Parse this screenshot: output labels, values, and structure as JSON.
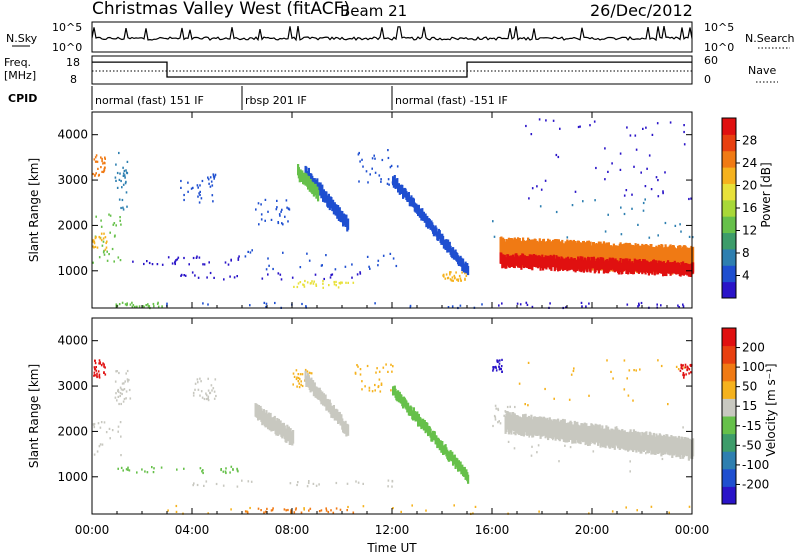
{
  "header": {
    "station": "Christmas Valley West (fitACF)",
    "beam": "Beam 21",
    "date": "26/Dec/2012"
  },
  "noise_panel": {
    "left_label": "N.Sky",
    "right_label": "N.Search",
    "left_ticks": [
      "10^5",
      "10^0"
    ],
    "right_ticks": [
      "10^5",
      "10^0"
    ]
  },
  "freq_panel": {
    "left_label_1": "Freq.",
    "left_label_2": "[MHz]",
    "right_label": "Nave",
    "left_ticks": [
      "18",
      "8"
    ],
    "right_ticks": [
      "60",
      "0"
    ],
    "freq_steps": [
      {
        "start_hr": 0,
        "end_hr": 3.0,
        "level": 0.78
      },
      {
        "start_hr": 3.0,
        "end_hr": 15.0,
        "level": 0.25
      },
      {
        "start_hr": 15.0,
        "end_hr": 24.0,
        "level": 0.78
      }
    ]
  },
  "cpid": {
    "label": "CPID",
    "segments": [
      {
        "start_hr": 0,
        "end_hr": 6.0,
        "text": "normal (fast) 151 IF"
      },
      {
        "start_hr": 6.0,
        "end_hr": 12.0,
        "text": "rbsp 201 IF"
      },
      {
        "start_hr": 12.0,
        "end_hr": 24.0,
        "text": "normal (fast) -151 IF"
      }
    ]
  },
  "chart_data": [
    {
      "type": "heatmap",
      "name": "power",
      "ylabel": "Slant Range [km]",
      "x_range_hours": [
        0,
        24
      ],
      "ylim": [
        180,
        4500
      ],
      "y_ticks": [
        1000,
        2000,
        3000,
        4000
      ],
      "colorbar": {
        "label": "Power [dB]",
        "ticks": [
          "28",
          "24",
          "20",
          "16",
          "12",
          "8",
          "4"
        ],
        "colors": [
          "#2a14c8",
          "#1f4fd0",
          "#2e7fb0",
          "#3d9c6a",
          "#66c04a",
          "#a8d838",
          "#e8e13a",
          "#f5b21e",
          "#f07a14",
          "#e84010",
          "#e01010"
        ]
      },
      "regions": [
        {
          "t0": 0.0,
          "t1": 1.2,
          "r0": 1200,
          "r1": 2300,
          "color": "#66c04a"
        },
        {
          "t0": 0.0,
          "t1": 0.6,
          "r0": 1400,
          "r1": 1900,
          "color": "#f5b21e"
        },
        {
          "t0": 0.0,
          "t1": 0.5,
          "r0": 3100,
          "r1": 3600,
          "color": "#f07a14"
        },
        {
          "t0": 0.9,
          "t1": 1.4,
          "r0": 2300,
          "r1": 3700,
          "color": "#2e7fb0"
        },
        {
          "t0": 1.2,
          "t1": 6.0,
          "r0": 1150,
          "r1": 1350,
          "color": "#2a14c8"
        },
        {
          "t0": 3.5,
          "t1": 11.0,
          "r0": 820,
          "r1": 1000,
          "color": "#2a14c8"
        },
        {
          "t0": 6.0,
          "t1": 12.5,
          "r0": 1050,
          "r1": 1500,
          "color": "#1f4fd0"
        },
        {
          "t0": 8.0,
          "t1": 10.5,
          "r0": 650,
          "r1": 800,
          "color": "#e8e13a"
        },
        {
          "t0": 0.8,
          "t1": 2.8,
          "r0": 200,
          "r1": 320,
          "color": "#66c04a"
        },
        {
          "t0": 2.8,
          "t1": 16.0,
          "r0": 200,
          "r1": 320,
          "color": "#1f4fd0"
        },
        {
          "t0": 16.0,
          "t1": 24.0,
          "r0": 200,
          "r1": 320,
          "color": "#2a14c8"
        },
        {
          "t0": 14.0,
          "t1": 15.0,
          "r0": 800,
          "r1": 1000,
          "color": "#f5b21e"
        },
        {
          "t0": 3.5,
          "t1": 5.0,
          "r0": 2500,
          "r1": 3200,
          "color": "#1f4fd0"
        },
        {
          "t0": 6.5,
          "t1": 8.0,
          "r0": 2000,
          "r1": 2600,
          "color": "#1f4fd0"
        },
        {
          "t0": 10.5,
          "t1": 12.2,
          "r0": 2900,
          "r1": 3700,
          "color": "#1f4fd0"
        },
        {
          "t0": 16.0,
          "t1": 24.0,
          "r0": 1700,
          "r1": 2600,
          "color": "#2e7fb0"
        },
        {
          "t0": 17.0,
          "t1": 24.0,
          "r0": 2600,
          "r1": 4400,
          "color": "#2a14c8"
        }
      ],
      "bands": [
        {
          "t0": 16.3,
          "t1": 24.0,
          "r_top_start": 1700,
          "r_top_end": 1500,
          "thickness": 550,
          "color": "#f07a14"
        },
        {
          "t0": 16.3,
          "t1": 24.0,
          "r_top_start": 1350,
          "r_top_end": 1150,
          "thickness": 250,
          "color": "#e01010"
        },
        {
          "t0": 8.5,
          "t1": 10.2,
          "r_top_start": 3300,
          "r_top_end": 2150,
          "thickness": 250,
          "color": "#1f4fd0"
        },
        {
          "t0": 12.0,
          "t1": 15.0,
          "r_top_start": 3100,
          "r_top_end": 1100,
          "thickness": 200,
          "color": "#1f4fd0"
        },
        {
          "t0": 8.2,
          "t1": 9.0,
          "r_top_start": 3300,
          "r_top_end": 2800,
          "thickness": 250,
          "color": "#66c04a"
        }
      ]
    },
    {
      "type": "heatmap",
      "name": "velocity",
      "ylabel": "Slant Range [km]",
      "xlabel": "Time UT",
      "x_range_hours": [
        0,
        24
      ],
      "x_ticks": [
        "00:00",
        "04:00",
        "08:00",
        "12:00",
        "16:00",
        "20:00",
        "00:00"
      ],
      "ylim": [
        180,
        4500
      ],
      "y_ticks": [
        1000,
        2000,
        3000,
        4000
      ],
      "colorbar": {
        "label": "Velocity [m s⁻¹]",
        "ticks": [
          "200",
          "100",
          "50",
          "15",
          "-15",
          "-50",
          "-100",
          "-200"
        ],
        "colors": [
          "#2a14c8",
          "#1f4fd0",
          "#2e7fb0",
          "#3d9c6a",
          "#66c04a",
          "#c8c8c0",
          "#f5b21e",
          "#f07a14",
          "#e84010",
          "#e01010"
        ]
      },
      "regions": [
        {
          "t0": 0.0,
          "t1": 1.2,
          "r0": 1500,
          "r1": 2300,
          "color": "#c8c8c0"
        },
        {
          "t0": 0.0,
          "t1": 0.5,
          "r0": 3200,
          "r1": 3600,
          "color": "#e01010"
        },
        {
          "t0": 0.9,
          "t1": 1.5,
          "r0": 2600,
          "r1": 3400,
          "color": "#c8c8c0"
        },
        {
          "t0": 1.0,
          "t1": 6.0,
          "r0": 1100,
          "r1": 1250,
          "color": "#66c04a"
        },
        {
          "t0": 4.0,
          "t1": 12.0,
          "r0": 800,
          "r1": 950,
          "color": "#c8c8c0"
        },
        {
          "t0": 0.5,
          "t1": 24.0,
          "r0": 200,
          "r1": 400,
          "color": "#f5b21e"
        },
        {
          "t0": 6.0,
          "t1": 10.5,
          "r0": 230,
          "r1": 330,
          "color": "#f07a14"
        },
        {
          "t0": 16.0,
          "t1": 24.0,
          "r0": 1100,
          "r1": 2200,
          "color": "#c8c8c0"
        },
        {
          "t0": 16.0,
          "t1": 17.0,
          "r0": 2200,
          "r1": 2600,
          "color": "#c8c8c0"
        },
        {
          "t0": 17.0,
          "t1": 24.0,
          "r0": 2600,
          "r1": 3600,
          "color": "#f5b21e"
        },
        {
          "t0": 23.5,
          "t1": 24.0,
          "r0": 3200,
          "r1": 3500,
          "color": "#e01010"
        },
        {
          "t0": 16.0,
          "t1": 16.5,
          "r0": 3300,
          "r1": 3600,
          "color": "#2a14c8"
        },
        {
          "t0": 10.5,
          "t1": 12.0,
          "r0": 2900,
          "r1": 3500,
          "color": "#f5b21e"
        },
        {
          "t0": 8.0,
          "t1": 8.8,
          "r0": 3000,
          "r1": 3400,
          "color": "#f5b21e"
        },
        {
          "t0": 4.0,
          "t1": 5.0,
          "r0": 2700,
          "r1": 3200,
          "color": "#c8c8c0"
        }
      ],
      "bands": [
        {
          "t0": 8.5,
          "t1": 10.2,
          "r_top_start": 3300,
          "r_top_end": 2150,
          "thickness": 250,
          "color": "#c8c8c0"
        },
        {
          "t0": 12.0,
          "t1": 15.0,
          "r_top_start": 3000,
          "r_top_end": 1100,
          "thickness": 200,
          "color": "#66c04a"
        },
        {
          "t0": 6.5,
          "t1": 8.0,
          "r_top_start": 2600,
          "r_top_end": 2000,
          "thickness": 300,
          "color": "#c8c8c0"
        },
        {
          "t0": 16.5,
          "t1": 24.0,
          "r_top_start": 2400,
          "r_top_end": 1800,
          "thickness": 400,
          "color": "#c8c8c0"
        }
      ]
    }
  ]
}
